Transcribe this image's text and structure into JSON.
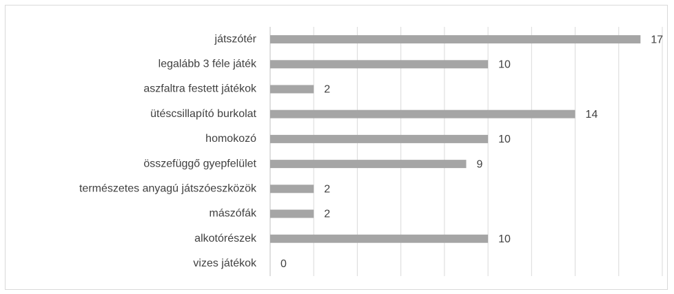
{
  "chart_data": {
    "type": "barh",
    "categories": [
      "játszótér",
      "legalább 3 féle játék",
      "aszfaltra festett játékok",
      "ütéscsillapító burkolat",
      "homokozó",
      "összefüggő gyepfelület",
      "természetes anyagú játszóeszközök",
      "mászófák",
      "alkotórészek",
      "vizes játékok"
    ],
    "values": [
      17,
      10,
      2,
      14,
      10,
      9,
      2,
      2,
      10,
      0
    ],
    "color": "#a5a5a5",
    "xlim": [
      0,
      18
    ],
    "xticks": [
      0,
      2,
      4,
      6,
      8,
      10,
      12,
      14,
      16,
      18
    ],
    "grid": true
  }
}
